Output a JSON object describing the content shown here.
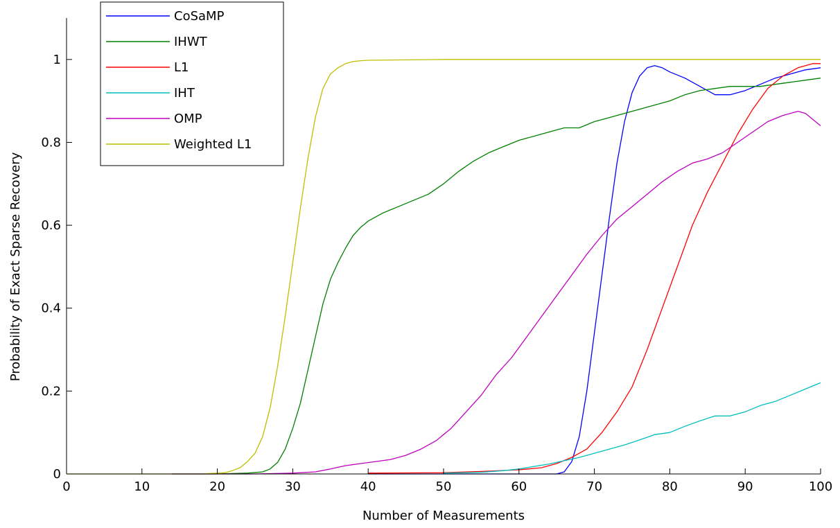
{
  "chart_data": {
    "type": "line",
    "title": "",
    "xlabel": "Number of Measurements",
    "ylabel": "Probability of Exact Sparse Recovery",
    "xlim": [
      0,
      100
    ],
    "ylim": [
      0,
      1.1
    ],
    "xticks": [
      0,
      10,
      20,
      30,
      40,
      50,
      60,
      70,
      80,
      90,
      100
    ],
    "yticks": [
      0,
      0.2,
      0.4,
      0.6,
      0.8,
      1
    ],
    "ytick_labels": [
      "0",
      "0.2",
      "0.4",
      "0.6",
      "0.8",
      "1"
    ],
    "grid": false,
    "legend_position": "top-left",
    "series": [
      {
        "name": "CoSaMP",
        "color": "#0000ff",
        "x": [
          40,
          50,
          60,
          64,
          65,
          66,
          67,
          68,
          69,
          70,
          71,
          72,
          73,
          74,
          75,
          76,
          77,
          78,
          79,
          80,
          82,
          84,
          86,
          88,
          90,
          92,
          94,
          96,
          98,
          100
        ],
        "y": [
          0,
          0,
          0,
          0,
          0,
          0.005,
          0.03,
          0.09,
          0.2,
          0.34,
          0.48,
          0.62,
          0.75,
          0.85,
          0.92,
          0.96,
          0.98,
          0.985,
          0.98,
          0.97,
          0.955,
          0.935,
          0.915,
          0.915,
          0.925,
          0.94,
          0.955,
          0.965,
          0.975,
          0.98
        ]
      },
      {
        "name": "IHWT",
        "color": "#008000",
        "x": [
          14,
          20,
          24,
          26,
          27,
          28,
          29,
          30,
          31,
          32,
          33,
          34,
          35,
          36,
          37,
          38,
          39,
          40,
          42,
          44,
          46,
          48,
          50,
          52,
          54,
          56,
          58,
          60,
          62,
          64,
          66,
          68,
          70,
          72,
          74,
          76,
          78,
          80,
          82,
          84,
          86,
          88,
          90,
          92,
          94,
          96,
          98,
          100
        ],
        "y": [
          0,
          0,
          0.002,
          0.005,
          0.012,
          0.028,
          0.06,
          0.11,
          0.17,
          0.25,
          0.33,
          0.41,
          0.47,
          0.51,
          0.545,
          0.575,
          0.595,
          0.61,
          0.63,
          0.645,
          0.66,
          0.675,
          0.7,
          0.73,
          0.755,
          0.775,
          0.79,
          0.805,
          0.815,
          0.825,
          0.835,
          0.835,
          0.85,
          0.86,
          0.87,
          0.88,
          0.89,
          0.9,
          0.915,
          0.925,
          0.93,
          0.935,
          0.935,
          0.935,
          0.94,
          0.945,
          0.95,
          0.955
        ]
      },
      {
        "name": "L1",
        "color": "#ff0000",
        "x": [
          40,
          50,
          55,
          60,
          63,
          65,
          67,
          69,
          71,
          73,
          75,
          77,
          79,
          81,
          83,
          85,
          87,
          89,
          91,
          93,
          95,
          97,
          98,
          99,
          100
        ],
        "y": [
          0.002,
          0.003,
          0.006,
          0.01,
          0.015,
          0.025,
          0.04,
          0.06,
          0.1,
          0.15,
          0.21,
          0.3,
          0.4,
          0.5,
          0.6,
          0.68,
          0.75,
          0.82,
          0.88,
          0.93,
          0.96,
          0.98,
          0.985,
          0.99,
          0.99
        ]
      },
      {
        "name": "IHT",
        "color": "#00bfbf",
        "x": [
          50,
          55,
          58,
          60,
          62,
          64,
          66,
          68,
          70,
          72,
          74,
          76,
          78,
          80,
          82,
          84,
          86,
          88,
          90,
          92,
          94,
          96,
          98,
          100
        ],
        "y": [
          0.002,
          0.004,
          0.008,
          0.012,
          0.018,
          0.024,
          0.032,
          0.04,
          0.05,
          0.06,
          0.07,
          0.082,
          0.095,
          0.1,
          0.115,
          0.128,
          0.14,
          0.14,
          0.15,
          0.165,
          0.175,
          0.19,
          0.205,
          0.22
        ]
      },
      {
        "name": "OMP",
        "color": "#bf00bf",
        "x": [
          14,
          20,
          25,
          30,
          33,
          35,
          37,
          39,
          41,
          43,
          45,
          47,
          49,
          51,
          53,
          55,
          57,
          59,
          61,
          63,
          65,
          67,
          69,
          71,
          73,
          75,
          77,
          79,
          81,
          83,
          85,
          87,
          89,
          91,
          93,
          95,
          96,
          97,
          98,
          99,
          100
        ],
        "y": [
          0,
          0,
          0,
          0.002,
          0.005,
          0.012,
          0.02,
          0.025,
          0.03,
          0.035,
          0.045,
          0.06,
          0.08,
          0.11,
          0.15,
          0.19,
          0.24,
          0.28,
          0.33,
          0.38,
          0.43,
          0.48,
          0.53,
          0.575,
          0.615,
          0.645,
          0.675,
          0.705,
          0.73,
          0.75,
          0.76,
          0.775,
          0.8,
          0.825,
          0.85,
          0.865,
          0.87,
          0.875,
          0.87,
          0.855,
          0.84
        ]
      },
      {
        "name": "Weighted L1",
        "color": "#bfbf00",
        "x": [
          0,
          10,
          18,
          21,
          22,
          23,
          24,
          25,
          26,
          27,
          28,
          29,
          30,
          31,
          32,
          33,
          34,
          35,
          36,
          37,
          38,
          39,
          40,
          45,
          50,
          60,
          70,
          80,
          90,
          100
        ],
        "y": [
          0,
          0,
          0,
          0.003,
          0.008,
          0.015,
          0.03,
          0.05,
          0.09,
          0.16,
          0.26,
          0.38,
          0.51,
          0.64,
          0.76,
          0.86,
          0.93,
          0.965,
          0.98,
          0.99,
          0.995,
          0.997,
          0.998,
          0.999,
          1.0,
          1.0,
          1.0,
          1.0,
          1.0,
          1.0
        ]
      }
    ]
  }
}
